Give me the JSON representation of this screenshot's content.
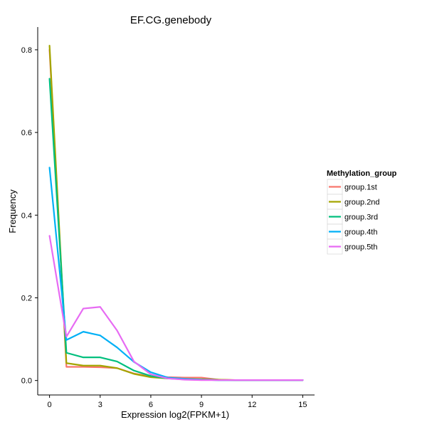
{
  "chart_data": {
    "type": "line",
    "title": "EF.CG.genebody",
    "xlabel": "Expression log2(FPKM+1)",
    "ylabel": "Frequency",
    "xlim": [
      -0.7,
      15.7
    ],
    "ylim": [
      -0.035,
      0.855
    ],
    "xticks": [
      0,
      3,
      6,
      9,
      12,
      15
    ],
    "yticks": [
      0.0,
      0.2,
      0.4,
      0.6,
      0.8
    ],
    "ytick_labels": [
      "0.0",
      "0.2",
      "0.4",
      "0.6",
      "0.8"
    ],
    "grid": false,
    "legend_position": "right",
    "legend_title": "Methylation_group",
    "x": [
      0,
      1,
      2,
      3,
      4,
      5,
      6,
      7,
      8,
      9,
      10,
      11,
      12,
      13,
      14,
      15
    ],
    "series": [
      {
        "name": "group.1st",
        "color": "#f8766d",
        "values": [
          0.8,
          0.033,
          0.033,
          0.032,
          0.03,
          0.017,
          0.01,
          0.008,
          0.007,
          0.007,
          0.002,
          0.001,
          0.001,
          0.001,
          0.001,
          0.001
        ]
      },
      {
        "name": "group.2nd",
        "color": "#a3a500",
        "values": [
          0.81,
          0.042,
          0.036,
          0.036,
          0.03,
          0.016,
          0.008,
          0.005,
          0.004,
          0.003,
          0.002,
          0.001,
          0.001,
          0.001,
          0.001,
          0.001
        ]
      },
      {
        "name": "group.3rd",
        "color": "#00bf7d",
        "values": [
          0.73,
          0.067,
          0.056,
          0.056,
          0.046,
          0.024,
          0.011,
          0.005,
          0.003,
          0.002,
          0.001,
          0.001,
          0.001,
          0.001,
          0.001,
          0.001
        ]
      },
      {
        "name": "group.4th",
        "color": "#00b0f6",
        "values": [
          0.515,
          0.098,
          0.118,
          0.109,
          0.08,
          0.045,
          0.02,
          0.007,
          0.004,
          0.002,
          0.001,
          0.001,
          0.001,
          0.001,
          0.001,
          0.001
        ]
      },
      {
        "name": "group.5th",
        "color": "#e76bf3",
        "values": [
          0.35,
          0.106,
          0.174,
          0.178,
          0.121,
          0.046,
          0.015,
          0.005,
          0.002,
          0.001,
          0.001,
          0.001,
          0.001,
          0.001,
          0.001,
          0.001
        ]
      }
    ]
  }
}
